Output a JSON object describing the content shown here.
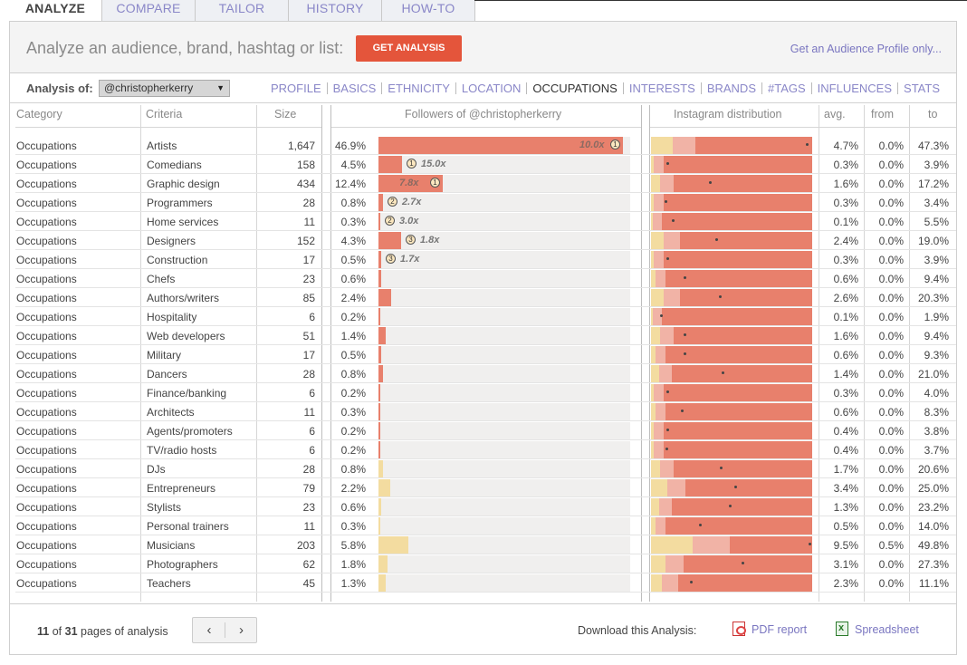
{
  "tabs": [
    "ANALYZE",
    "COMPARE",
    "TAILOR",
    "HISTORY",
    "HOW-TO"
  ],
  "header": {
    "title": "Analyze an audience, brand, hashtag or list:",
    "get_button": "GET ANALYSIS",
    "profile_link": "Get an Audience Profile only..."
  },
  "subbar": {
    "label": "Analysis of:",
    "selected": "@christopherkerry",
    "nav": [
      "PROFILE",
      "BASICS",
      "ETHNICITY",
      "LOCATION",
      "OCCUPATIONS",
      "INTERESTS",
      "BRANDS",
      "#TAGS",
      "INFLUENCES",
      "STATS"
    ],
    "active_nav": "OCCUPATIONS"
  },
  "columns": {
    "category": "Category",
    "criteria": "Criteria",
    "size": "Size",
    "followers": "Followers of @christopherkerry",
    "distribution": "Instagram distribution",
    "avg": "avg.",
    "from": "from",
    "to": "to"
  },
  "colors": {
    "accent": "#e4553b",
    "link": "#7a76c0",
    "bar_red": "#e8806c",
    "bar_yellow": "#f3dca0",
    "band_light": "#f1b3a6"
  },
  "rows": [
    {
      "category": "Occupations",
      "criteria": "Artists",
      "size": "1,647",
      "pct": "46.9%",
      "share": 0.971,
      "color": "red",
      "rank": "1",
      "ratio": "10.0x",
      "avg": "4.7%",
      "from": "0.0%",
      "to": "47.3%",
      "avg_v": 4.7,
      "to_v": 47.3
    },
    {
      "category": "Occupations",
      "criteria": "Comedians",
      "size": "158",
      "pct": "4.5%",
      "share": 0.093,
      "color": "red",
      "rank": "1",
      "ratio": "15.0x",
      "avg": "0.3%",
      "from": "0.0%",
      "to": "3.9%",
      "avg_v": 0.3,
      "to_v": 3.9
    },
    {
      "category": "Occupations",
      "criteria": "Graphic design",
      "size": "434",
      "pct": "12.4%",
      "share": 0.257,
      "color": "red",
      "rank": "1",
      "ratio": "7.8x",
      "avg": "1.6%",
      "from": "0.0%",
      "to": "17.2%",
      "avg_v": 1.6,
      "to_v": 17.2
    },
    {
      "category": "Occupations",
      "criteria": "Programmers",
      "size": "28",
      "pct": "0.8%",
      "share": 0.017,
      "color": "red",
      "rank": "2",
      "ratio": "2.7x",
      "avg": "0.3%",
      "from": "0.0%",
      "to": "3.4%",
      "avg_v": 0.3,
      "to_v": 3.4
    },
    {
      "category": "Occupations",
      "criteria": "Home services",
      "size": "11",
      "pct": "0.3%",
      "share": 0.006,
      "color": "red",
      "rank": "2",
      "ratio": "3.0x",
      "avg": "0.1%",
      "from": "0.0%",
      "to": "5.5%",
      "avg_v": 0.1,
      "to_v": 5.5
    },
    {
      "category": "Occupations",
      "criteria": "Designers",
      "size": "152",
      "pct": "4.3%",
      "share": 0.089,
      "color": "red",
      "rank": "3",
      "ratio": "1.8x",
      "avg": "2.4%",
      "from": "0.0%",
      "to": "19.0%",
      "avg_v": 2.4,
      "to_v": 19.0
    },
    {
      "category": "Occupations",
      "criteria": "Construction",
      "size": "17",
      "pct": "0.5%",
      "share": 0.01,
      "color": "red",
      "rank": "3",
      "ratio": "1.7x",
      "avg": "0.3%",
      "from": "0.0%",
      "to": "3.9%",
      "avg_v": 0.3,
      "to_v": 3.9
    },
    {
      "category": "Occupations",
      "criteria": "Chefs",
      "size": "23",
      "pct": "0.6%",
      "share": 0.012,
      "color": "red",
      "rank": "",
      "ratio": "",
      "avg": "0.6%",
      "from": "0.0%",
      "to": "9.4%",
      "avg_v": 0.6,
      "to_v": 9.4
    },
    {
      "category": "Occupations",
      "criteria": "Authors/writers",
      "size": "85",
      "pct": "2.4%",
      "share": 0.05,
      "color": "red",
      "rank": "",
      "ratio": "",
      "avg": "2.6%",
      "from": "0.0%",
      "to": "20.3%",
      "avg_v": 2.6,
      "to_v": 20.3
    },
    {
      "category": "Occupations",
      "criteria": "Hospitality",
      "size": "6",
      "pct": "0.2%",
      "share": 0.004,
      "color": "red",
      "rank": "",
      "ratio": "",
      "avg": "0.1%",
      "from": "0.0%",
      "to": "1.9%",
      "avg_v": 0.1,
      "to_v": 1.9
    },
    {
      "category": "Occupations",
      "criteria": "Web developers",
      "size": "51",
      "pct": "1.4%",
      "share": 0.029,
      "color": "red",
      "rank": "",
      "ratio": "",
      "avg": "1.6%",
      "from": "0.0%",
      "to": "9.4%",
      "avg_v": 1.6,
      "to_v": 9.4
    },
    {
      "category": "Occupations",
      "criteria": "Military",
      "size": "17",
      "pct": "0.5%",
      "share": 0.01,
      "color": "red",
      "rank": "",
      "ratio": "",
      "avg": "0.6%",
      "from": "0.0%",
      "to": "9.3%",
      "avg_v": 0.6,
      "to_v": 9.3
    },
    {
      "category": "Occupations",
      "criteria": "Dancers",
      "size": "28",
      "pct": "0.8%",
      "share": 0.017,
      "color": "red",
      "rank": "",
      "ratio": "",
      "avg": "1.4%",
      "from": "0.0%",
      "to": "21.0%",
      "avg_v": 1.4,
      "to_v": 21.0
    },
    {
      "category": "Occupations",
      "criteria": "Finance/banking",
      "size": "6",
      "pct": "0.2%",
      "share": 0.004,
      "color": "red",
      "rank": "",
      "ratio": "",
      "avg": "0.3%",
      "from": "0.0%",
      "to": "4.0%",
      "avg_v": 0.3,
      "to_v": 4.0
    },
    {
      "category": "Occupations",
      "criteria": "Architects",
      "size": "11",
      "pct": "0.3%",
      "share": 0.006,
      "color": "red",
      "rank": "",
      "ratio": "",
      "avg": "0.6%",
      "from": "0.0%",
      "to": "8.3%",
      "avg_v": 0.6,
      "to_v": 8.3
    },
    {
      "category": "Occupations",
      "criteria": "Agents/promoters",
      "size": "6",
      "pct": "0.2%",
      "share": 0.004,
      "color": "red",
      "rank": "",
      "ratio": "",
      "avg": "0.4%",
      "from": "0.0%",
      "to": "3.8%",
      "avg_v": 0.4,
      "to_v": 3.8
    },
    {
      "category": "Occupations",
      "criteria": "TV/radio hosts",
      "size": "6",
      "pct": "0.2%",
      "share": 0.004,
      "color": "red",
      "rank": "",
      "ratio": "",
      "avg": "0.4%",
      "from": "0.0%",
      "to": "3.7%",
      "avg_v": 0.4,
      "to_v": 3.7
    },
    {
      "category": "Occupations",
      "criteria": "DJs",
      "size": "28",
      "pct": "0.8%",
      "share": 0.017,
      "color": "yellow",
      "rank": "",
      "ratio": "",
      "avg": "1.7%",
      "from": "0.0%",
      "to": "20.6%",
      "avg_v": 1.7,
      "to_v": 20.6
    },
    {
      "category": "Occupations",
      "criteria": "Entrepreneurs",
      "size": "79",
      "pct": "2.2%",
      "share": 0.046,
      "color": "yellow",
      "rank": "",
      "ratio": "",
      "avg": "3.4%",
      "from": "0.0%",
      "to": "25.0%",
      "avg_v": 3.4,
      "to_v": 25.0
    },
    {
      "category": "Occupations",
      "criteria": "Stylists",
      "size": "23",
      "pct": "0.6%",
      "share": 0.012,
      "color": "yellow",
      "rank": "",
      "ratio": "",
      "avg": "1.3%",
      "from": "0.0%",
      "to": "23.2%",
      "avg_v": 1.3,
      "to_v": 23.2
    },
    {
      "category": "Occupations",
      "criteria": "Personal trainers",
      "size": "11",
      "pct": "0.3%",
      "share": 0.006,
      "color": "yellow",
      "rank": "",
      "ratio": "",
      "avg": "0.5%",
      "from": "0.0%",
      "to": "14.0%",
      "avg_v": 0.5,
      "to_v": 14.0
    },
    {
      "category": "Occupations",
      "criteria": "Musicians",
      "size": "203",
      "pct": "5.8%",
      "share": 0.12,
      "color": "yellow",
      "rank": "",
      "ratio": "",
      "avg": "9.5%",
      "from": "0.5%",
      "to": "49.8%",
      "avg_v": 9.5,
      "to_v": 49.8
    },
    {
      "category": "Occupations",
      "criteria": "Photographers",
      "size": "62",
      "pct": "1.8%",
      "share": 0.037,
      "color": "yellow",
      "rank": "",
      "ratio": "",
      "avg": "3.1%",
      "from": "0.0%",
      "to": "27.3%",
      "avg_v": 3.1,
      "to_v": 27.3
    },
    {
      "category": "Occupations",
      "criteria": "Teachers",
      "size": "45",
      "pct": "1.3%",
      "share": 0.027,
      "color": "yellow",
      "rank": "",
      "ratio": "",
      "avg": "2.3%",
      "from": "0.0%",
      "to": "11.1%",
      "avg_v": 2.3,
      "to_v": 11.1
    }
  ],
  "footer": {
    "page_current": "11",
    "page_of": "of",
    "page_total": "31",
    "page_suffix": "pages of analysis",
    "prev": "‹",
    "next": "›",
    "download_label": "Download this Analysis:",
    "pdf_link": "PDF report",
    "spreadsheet_link": "Spreadsheet"
  }
}
